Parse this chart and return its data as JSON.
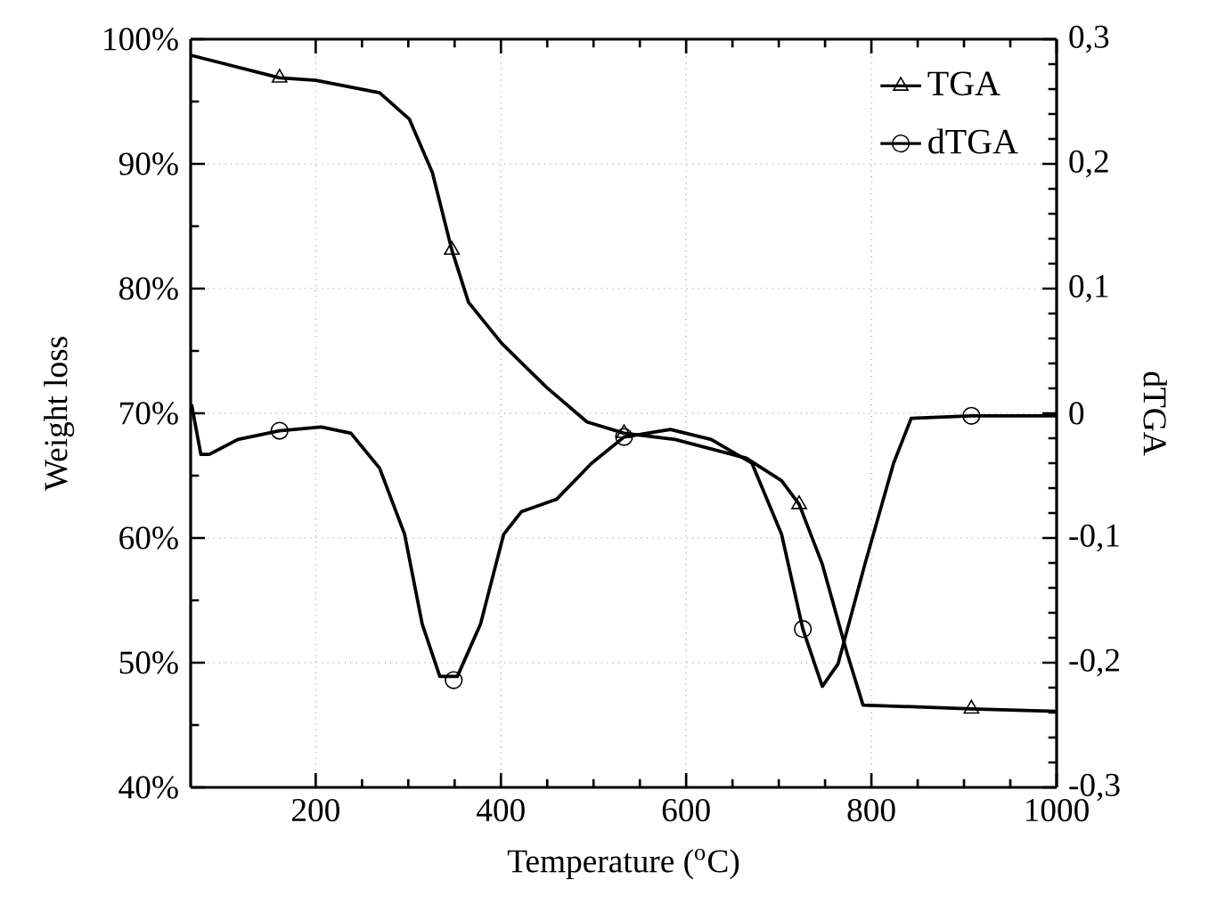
{
  "chart_data": {
    "type": "line",
    "xlabel": "Temperature ($^{o}$C)",
    "ylabel": "Weight loss",
    "y2label": "dTGA",
    "xlim": [
      65,
      1000
    ],
    "xticks": [
      200,
      400,
      600,
      800,
      1000
    ],
    "ylim": [
      40,
      100
    ],
    "yticks": [
      {
        "value": 40,
        "label": "40%"
      },
      {
        "value": 50,
        "label": "50%"
      },
      {
        "value": 60,
        "label": "60%"
      },
      {
        "value": 70,
        "label": "70%"
      },
      {
        "value": 80,
        "label": "80%"
      },
      {
        "value": 90,
        "label": "90%"
      },
      {
        "value": 100,
        "label": "100%"
      }
    ],
    "y2lim": [
      -0.3,
      0.3
    ],
    "y2ticks": [
      {
        "value": -0.3,
        "label": "-0,3"
      },
      {
        "value": -0.2,
        "label": "-0,2"
      },
      {
        "value": -0.1,
        "label": "-0,1"
      },
      {
        "value": 0,
        "label": "0"
      },
      {
        "value": 0.1,
        "label": "0,1"
      },
      {
        "value": 0.2,
        "label": "0,2"
      },
      {
        "value": 0.3,
        "label": "0,3"
      }
    ],
    "grid": true,
    "legend": "top right",
    "line_style": "solid",
    "series": [
      {
        "name": "TGA",
        "color": "#000000",
        "x": [
          66,
          161,
          200,
          269,
          301,
          326,
          347,
          365,
          401,
          449,
          493,
          533,
          588,
          665,
          703,
          722,
          747,
          774,
          791,
          908,
          1000
        ],
        "values": [
          98.7,
          96.9,
          96.7,
          95.7,
          93.6,
          89.3,
          83.1,
          78.9,
          75.6,
          72.1,
          69.3,
          68.4,
          67.9,
          66.4,
          64.6,
          62.7,
          57.9,
          50.7,
          46.6,
          46.3,
          46.1
        ]
      },
      {
        "type": "scatter",
        "color": "#000000",
        "marker": "triangle",
        "x": [
          161,
          347,
          533,
          722,
          908
        ],
        "values": [
          96.9,
          83.1,
          68.4,
          62.7,
          46.3
        ]
      },
      {
        "name": "dTGA",
        "color": "#000000",
        "axis": "y2",
        "x": [
          66,
          76,
          85,
          116,
          161,
          206,
          238,
          269,
          296,
          315,
          334,
          353,
          378,
          403,
          422,
          460,
          498,
          533,
          583,
          627,
          671,
          703,
          726,
          747,
          764,
          793,
          824,
          843,
          908,
          1000
        ],
        "values": [
          0.007,
          -0.033,
          -0.033,
          -0.021,
          -0.014,
          -0.011,
          -0.016,
          -0.044,
          -0.097,
          -0.169,
          -0.211,
          -0.211,
          -0.169,
          -0.097,
          -0.079,
          -0.069,
          -0.04,
          -0.019,
          -0.013,
          -0.021,
          -0.04,
          -0.097,
          -0.173,
          -0.219,
          -0.201,
          -0.121,
          -0.04,
          -0.004,
          -0.002,
          -0.002
        ]
      },
      {
        "type": "scatter",
        "color": "#000000",
        "marker": "circle",
        "axis": "y2",
        "x": [
          161,
          349,
          533,
          726,
          908
        ],
        "values": [
          -0.014,
          -0.214,
          -0.019,
          -0.173,
          -0.002
        ]
      }
    ]
  }
}
